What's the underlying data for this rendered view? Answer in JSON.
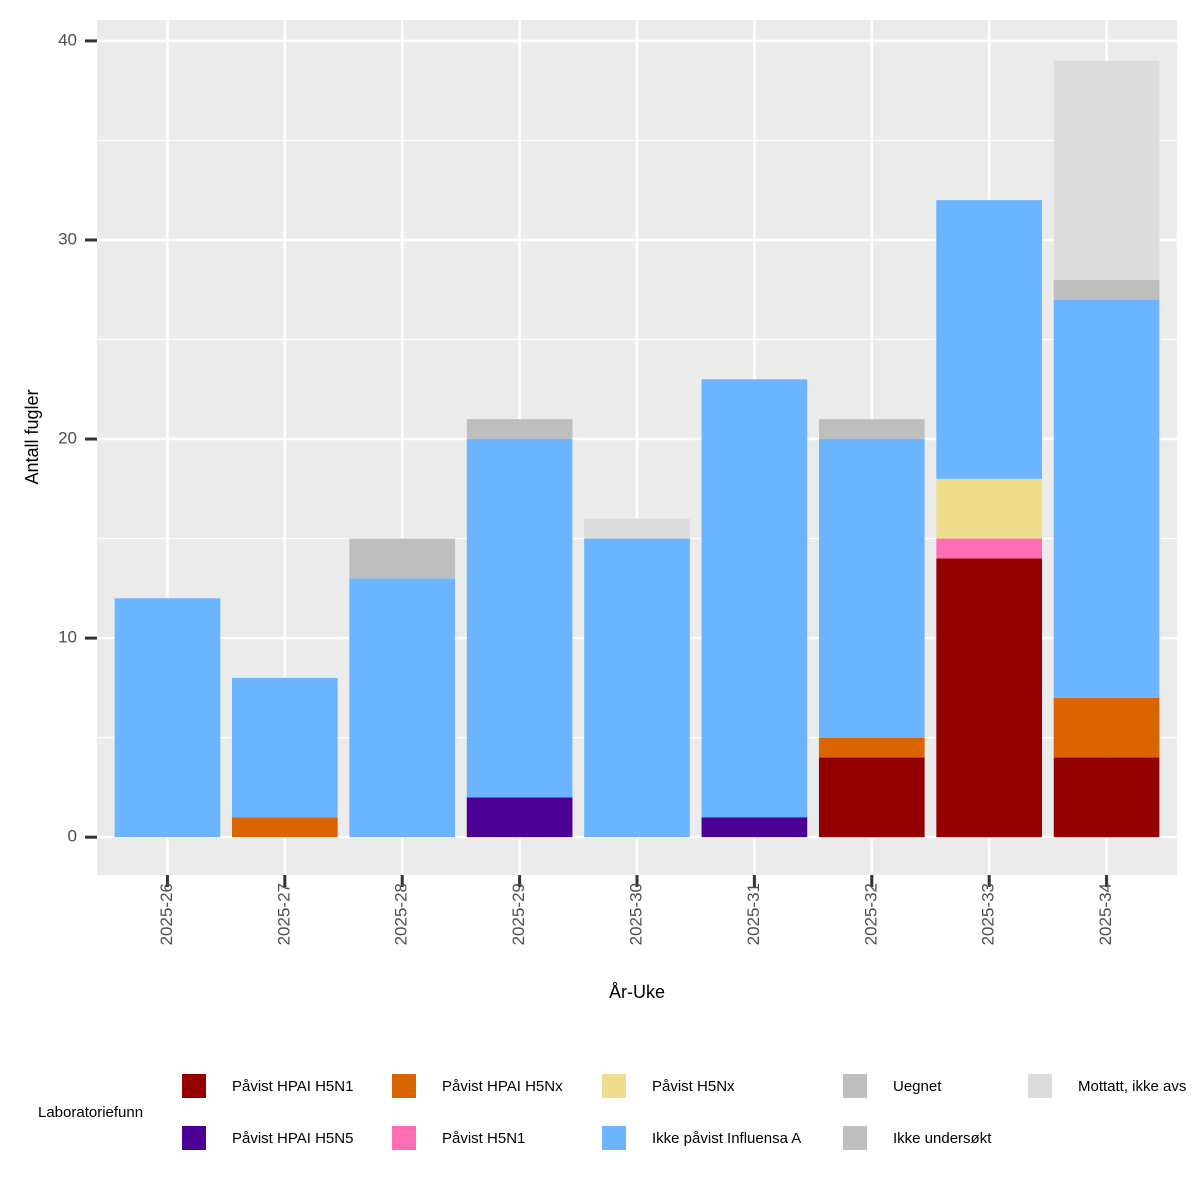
{
  "chart_data": {
    "type": "bar",
    "stacked": true,
    "x_label": "År-Uke",
    "y_label": "Antall fugler",
    "legend_title": "Laboratoriefunn",
    "categories": [
      "2025-26",
      "2025-27",
      "2025-28",
      "2025-29",
      "2025-30",
      "2025-31",
      "2025-32",
      "2025-33",
      "2025-34"
    ],
    "series": [
      {
        "name": "Påvist HPAI H5N1",
        "color": "#930000",
        "values": [
          0,
          0,
          0,
          0,
          0,
          0,
          4,
          14,
          4
        ]
      },
      {
        "name": "Påvist HPAI H5N5",
        "color": "#4b0096",
        "values": [
          0,
          0,
          0,
          2,
          0,
          1,
          0,
          0,
          0
        ]
      },
      {
        "name": "Påvist HPAI H5Nx",
        "color": "#d96400",
        "values": [
          0,
          1,
          0,
          0,
          0,
          0,
          1,
          0,
          3
        ]
      },
      {
        "name": "Påvist H5N1",
        "color": "#ff6eb4",
        "values": [
          0,
          0,
          0,
          0,
          0,
          0,
          0,
          1,
          0
        ]
      },
      {
        "name": "Påvist H5Nx",
        "color": "#eddd8c",
        "values": [
          0,
          0,
          0,
          0,
          0,
          0,
          0,
          3,
          0
        ]
      },
      {
        "name": "Ikke påvist Influensa A",
        "color": "#6bb4ff",
        "values": [
          12,
          7,
          13,
          18,
          15,
          22,
          15,
          14,
          20
        ]
      },
      {
        "name": "Uegnet",
        "color": "#bebebe",
        "values": [
          0,
          0,
          2,
          1,
          0,
          0,
          1,
          0,
          1
        ]
      },
      {
        "name": "Ikke undersøkt",
        "color": "#bebebe",
        "values": [
          0,
          0,
          0,
          0,
          0,
          0,
          0,
          0,
          0
        ]
      },
      {
        "name": "Mottatt, ikke avs",
        "color": "#dcdcdc",
        "values": [
          0,
          0,
          0,
          0,
          1,
          0,
          0,
          0,
          11
        ]
      }
    ],
    "ylim": [
      -1.9,
      41.05
    ],
    "yticks": [
      0,
      10,
      20,
      30,
      40
    ],
    "yminor": [
      5,
      15,
      25,
      35
    ],
    "grid": true
  }
}
